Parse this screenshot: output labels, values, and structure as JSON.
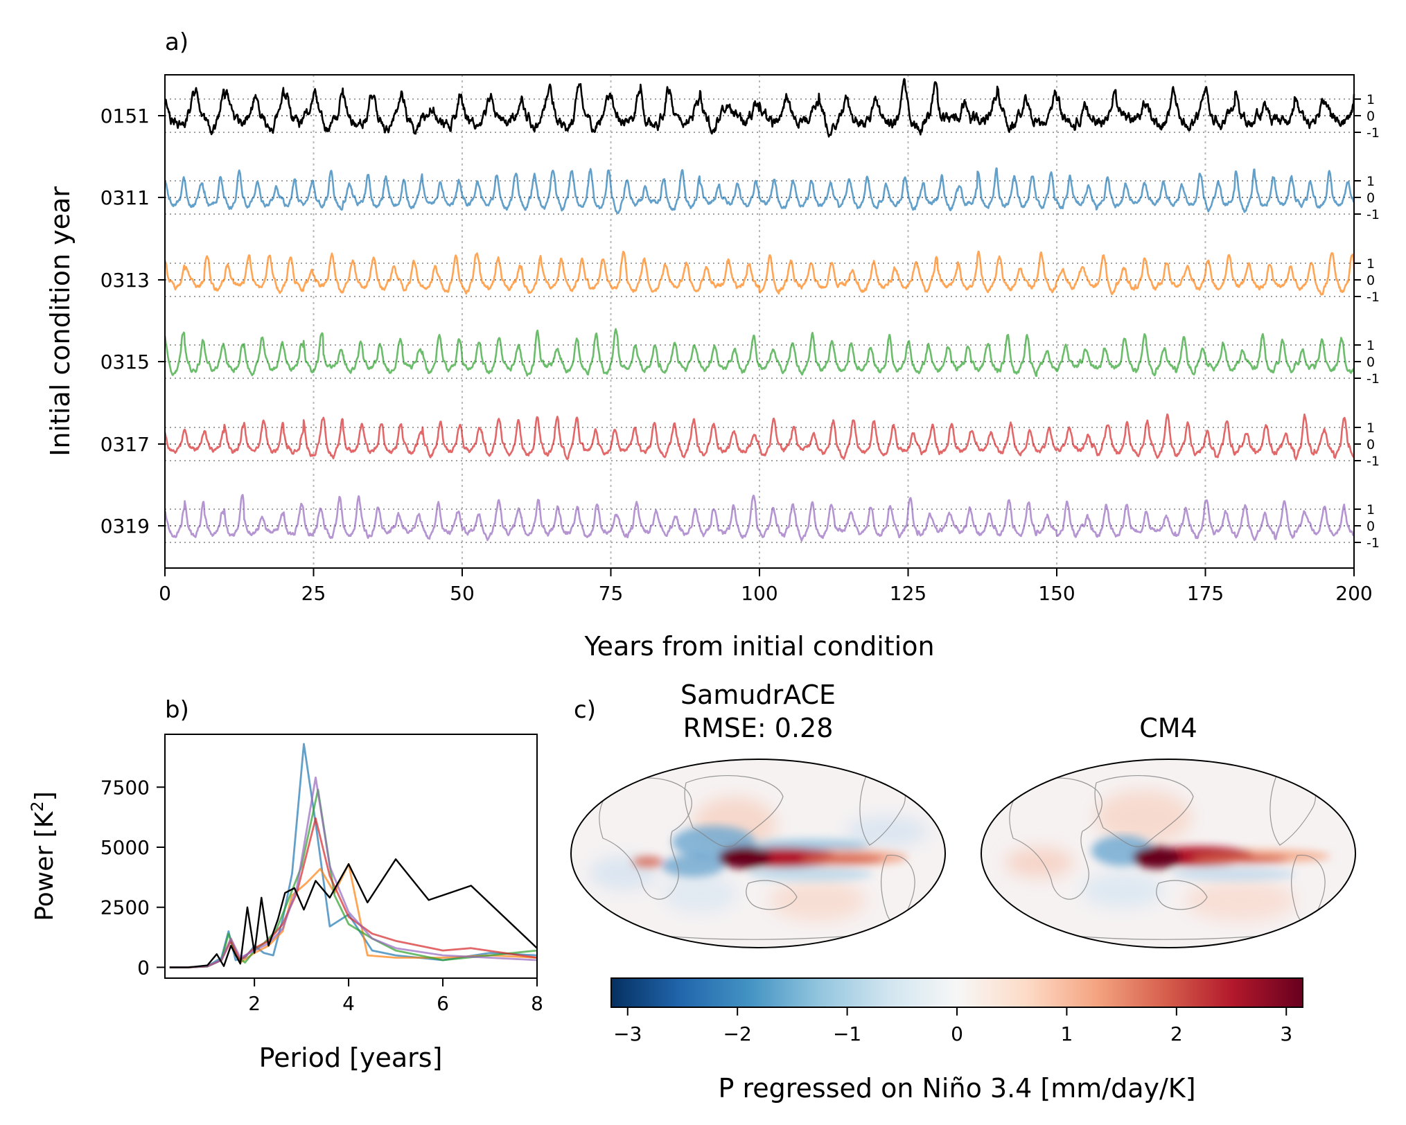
{
  "chart_data": [
    {
      "panel": "a)",
      "type": "line",
      "xlabel": "Years from initial condition",
      "ylabel": "Initial condition year",
      "xlim": [
        0,
        200
      ],
      "x_ticks": [
        0,
        25,
        50,
        75,
        100,
        125,
        150,
        175,
        200
      ],
      "grid": "vertical dotted at x ticks",
      "offset_ticks": [
        "1",
        "0",
        "-1"
      ],
      "series": [
        {
          "name": "0151",
          "color": "#000000",
          "amplitude": 0.75,
          "noise": 0.45,
          "period": 5.0,
          "seed": 11
        },
        {
          "name": "0311",
          "color": "#1f77b4",
          "amplitude": 0.75,
          "noise": 0.2,
          "period": 3.1,
          "seed": 23
        },
        {
          "name": "0313",
          "color": "#ff7f0e",
          "amplitude": 0.75,
          "noise": 0.2,
          "period": 3.5,
          "seed": 37
        },
        {
          "name": "0315",
          "color": "#2ca02c",
          "amplitude": 0.75,
          "noise": 0.2,
          "period": 3.3,
          "seed": 41
        },
        {
          "name": "0317",
          "color": "#d62728",
          "amplitude": 0.75,
          "noise": 0.2,
          "period": 3.3,
          "seed": 53
        },
        {
          "name": "0319",
          "color": "#9467bd",
          "amplitude": 0.75,
          "noise": 0.2,
          "period": 3.3,
          "seed": 67
        }
      ]
    },
    {
      "panel": "b)",
      "type": "line",
      "xlabel": "Period [years]",
      "ylabel": "Power [K",
      "ylabel_sup": "2",
      "ylabel_end": "]",
      "xlim": [
        0.1,
        8
      ],
      "ylim": [
        -450,
        9700
      ],
      "x_ticks": [
        2,
        4,
        6,
        8
      ],
      "y_ticks": [
        0,
        2500,
        5000,
        7500
      ],
      "series": [
        {
          "name": "0151",
          "color": "#000000",
          "x": [
            0.2,
            0.6,
            1.0,
            1.2,
            1.35,
            1.5,
            1.7,
            1.85,
            2.0,
            2.15,
            2.3,
            2.5,
            2.65,
            2.85,
            3.05,
            3.3,
            3.6,
            4.0,
            4.4,
            5.0,
            5.7,
            6.6,
            8.0
          ],
          "y": [
            0,
            0,
            80,
            550,
            50,
            900,
            150,
            2500,
            600,
            2900,
            900,
            2000,
            3100,
            3300,
            2400,
            3600,
            2900,
            4300,
            2700,
            4500,
            2800,
            3400,
            800
          ]
        },
        {
          "name": "0311",
          "color": "#1f77b4",
          "x": [
            0.2,
            0.6,
            1.0,
            1.3,
            1.45,
            1.6,
            1.8,
            2.0,
            2.2,
            2.4,
            2.6,
            2.8,
            3.05,
            3.3,
            3.6,
            4.0,
            4.5,
            5.0,
            6.0,
            7.0,
            8.0
          ],
          "y": [
            0,
            0,
            40,
            400,
            1500,
            300,
            400,
            900,
            600,
            500,
            2000,
            3900,
            9300,
            6000,
            1700,
            2200,
            700,
            500,
            300,
            600,
            500
          ]
        },
        {
          "name": "0313",
          "color": "#ff7f0e",
          "x": [
            0.2,
            0.6,
            1.0,
            1.3,
            1.5,
            1.7,
            2.0,
            2.3,
            2.6,
            2.8,
            3.1,
            3.4,
            3.7,
            4.0,
            4.4,
            5.0,
            6.0,
            7.0,
            8.0
          ],
          "y": [
            0,
            0,
            40,
            300,
            1200,
            200,
            600,
            900,
            1500,
            3000,
            3500,
            4100,
            3100,
            4300,
            500,
            400,
            400,
            500,
            400
          ]
        },
        {
          "name": "0315",
          "color": "#2ca02c",
          "x": [
            0.2,
            0.6,
            1.0,
            1.3,
            1.45,
            1.6,
            1.8,
            2.0,
            2.2,
            2.45,
            2.7,
            3.0,
            3.35,
            3.7,
            4.0,
            4.5,
            5.0,
            6.0,
            7.0,
            8.0
          ],
          "y": [
            0,
            0,
            30,
            300,
            1400,
            500,
            200,
            700,
            1000,
            1500,
            2700,
            4200,
            7400,
            3000,
            1800,
            1200,
            700,
            300,
            500,
            700
          ]
        },
        {
          "name": "0317",
          "color": "#d62728",
          "x": [
            0.2,
            0.6,
            1.0,
            1.3,
            1.5,
            1.7,
            2.0,
            2.3,
            2.6,
            2.9,
            3.3,
            3.6,
            4.0,
            4.5,
            5.0,
            6.0,
            6.6,
            7.3,
            8.0
          ],
          "y": [
            0,
            0,
            40,
            300,
            1100,
            300,
            800,
            1100,
            1800,
            3100,
            6200,
            3800,
            2100,
            1400,
            1100,
            700,
            800,
            600,
            400
          ]
        },
        {
          "name": "0319",
          "color": "#9467bd",
          "x": [
            0.2,
            0.6,
            1.0,
            1.3,
            1.5,
            1.7,
            2.0,
            2.3,
            2.6,
            2.9,
            3.3,
            3.6,
            4.0,
            4.5,
            5.0,
            6.0,
            7.0,
            8.0
          ],
          "y": [
            0,
            0,
            40,
            300,
            1200,
            400,
            700,
            1000,
            1600,
            3300,
            7900,
            4200,
            2300,
            1200,
            800,
            500,
            400,
            300
          ]
        }
      ]
    },
    {
      "panel": "c)",
      "type": "heatmap",
      "maps": [
        {
          "title_line1": "SamudrACE",
          "title_line2": "RMSE: 0.28"
        },
        {
          "title_line1": "CM4",
          "title_line2": ""
        }
      ],
      "colormap": "RdBu_r",
      "clim": [
        -3.15,
        3.15
      ],
      "colorbar_ticks": [
        "−3",
        "−2",
        "−1",
        "0",
        "1",
        "2",
        "3"
      ],
      "colorbar_tick_values": [
        -3,
        -2,
        -1,
        0,
        1,
        2,
        3
      ],
      "colorbar_label": "P regressed on Niño 3.4 [mm/day/K]"
    }
  ]
}
